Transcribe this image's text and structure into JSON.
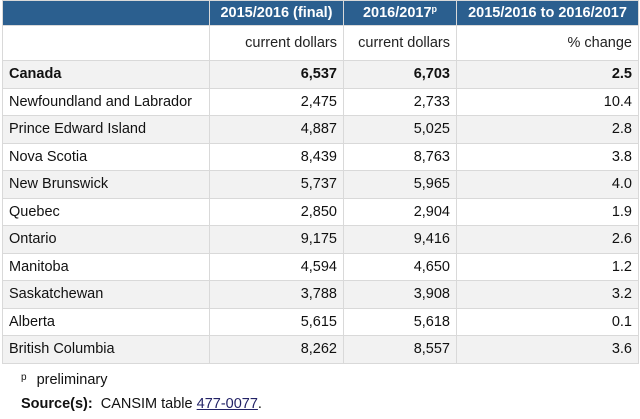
{
  "table": {
    "headers": {
      "col1": "2015/2016 (final)",
      "col2": "2016/2017",
      "col2_mark": "p",
      "col3": "2015/2016 to 2016/2017"
    },
    "units": {
      "col1": "current dollars",
      "col2": "current dollars",
      "col3": "% change"
    },
    "rows": [
      {
        "geo": "Canada",
        "v2015": "6,537",
        "v2016": "6,703",
        "change": "2.5"
      },
      {
        "geo": "Newfoundland and Labrador",
        "v2015": "2,475",
        "v2016": "2,733",
        "change": "10.4"
      },
      {
        "geo": "Prince Edward Island",
        "v2015": "4,887",
        "v2016": "5,025",
        "change": "2.8"
      },
      {
        "geo": "Nova Scotia",
        "v2015": "8,439",
        "v2016": "8,763",
        "change": "3.8"
      },
      {
        "geo": "New Brunswick",
        "v2015": "5,737",
        "v2016": "5,965",
        "change": "4.0"
      },
      {
        "geo": "Quebec",
        "v2015": "2,850",
        "v2016": "2,904",
        "change": "1.9"
      },
      {
        "geo": "Ontario",
        "v2015": "9,175",
        "v2016": "9,416",
        "change": "2.6"
      },
      {
        "geo": "Manitoba",
        "v2015": "4,594",
        "v2016": "4,650",
        "change": "1.2"
      },
      {
        "geo": "Saskatchewan",
        "v2015": "3,788",
        "v2016": "3,908",
        "change": "3.2"
      },
      {
        "geo": "Alberta",
        "v2015": "5,615",
        "v2016": "5,618",
        "change": "0.1"
      },
      {
        "geo": "British Columbia",
        "v2015": "8,262",
        "v2016": "8,557",
        "change": "3.6"
      }
    ]
  },
  "footnotes": {
    "mark": "p",
    "text": "preliminary"
  },
  "source": {
    "label": "Source(s):",
    "text": "CANSIM table",
    "link": "477-0077",
    "end": "."
  },
  "colors": {
    "header_bg": "#2b5f8f",
    "stripe_bg": "#f2f2f2"
  }
}
